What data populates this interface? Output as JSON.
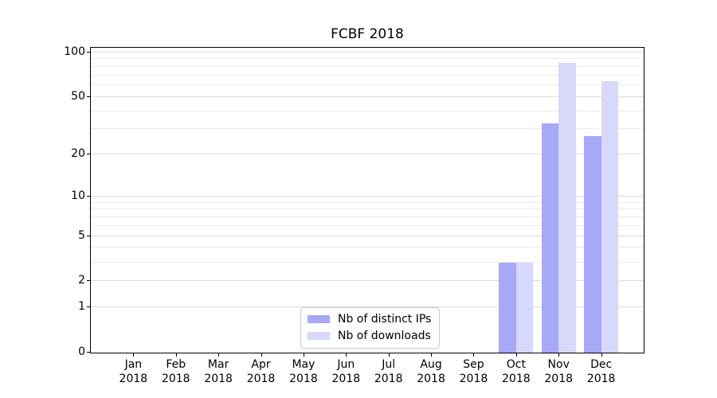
{
  "chart_data": {
    "type": "bar",
    "title": "FCBF 2018",
    "categories": [
      "Jan 2018",
      "Feb 2018",
      "Mar 2018",
      "Apr 2018",
      "May 2018",
      "Jun 2018",
      "Jul 2018",
      "Aug 2018",
      "Sep 2018",
      "Oct 2018",
      "Nov 2018",
      "Dec 2018"
    ],
    "series": [
      {
        "name": "Nb of distinct IPs",
        "color": "#a8a8f8",
        "values": [
          0,
          0,
          0,
          0,
          0,
          0,
          0,
          0,
          0,
          3,
          33,
          27
        ]
      },
      {
        "name": "Nb of downloads",
        "color": "#d8d8fa",
        "values": [
          0,
          0,
          0,
          0,
          0,
          0,
          0,
          0,
          0,
          3,
          85,
          64
        ]
      }
    ],
    "xlabel": "",
    "ylabel": "",
    "yscale": "log1p",
    "ylim": [
      0,
      107.5
    ],
    "y_ticks": [
      0,
      1,
      2,
      5,
      10,
      20,
      50,
      100
    ],
    "y_minor_gridlines": [
      3,
      4,
      6,
      7,
      8,
      9,
      30,
      40,
      60,
      70,
      80,
      90
    ],
    "grid": true,
    "legend_position": "lower center"
  },
  "colors": {
    "grid_major": "#dddddd",
    "grid_minor": "#ebebeb",
    "axis": "#000000",
    "background": "#ffffff"
  }
}
